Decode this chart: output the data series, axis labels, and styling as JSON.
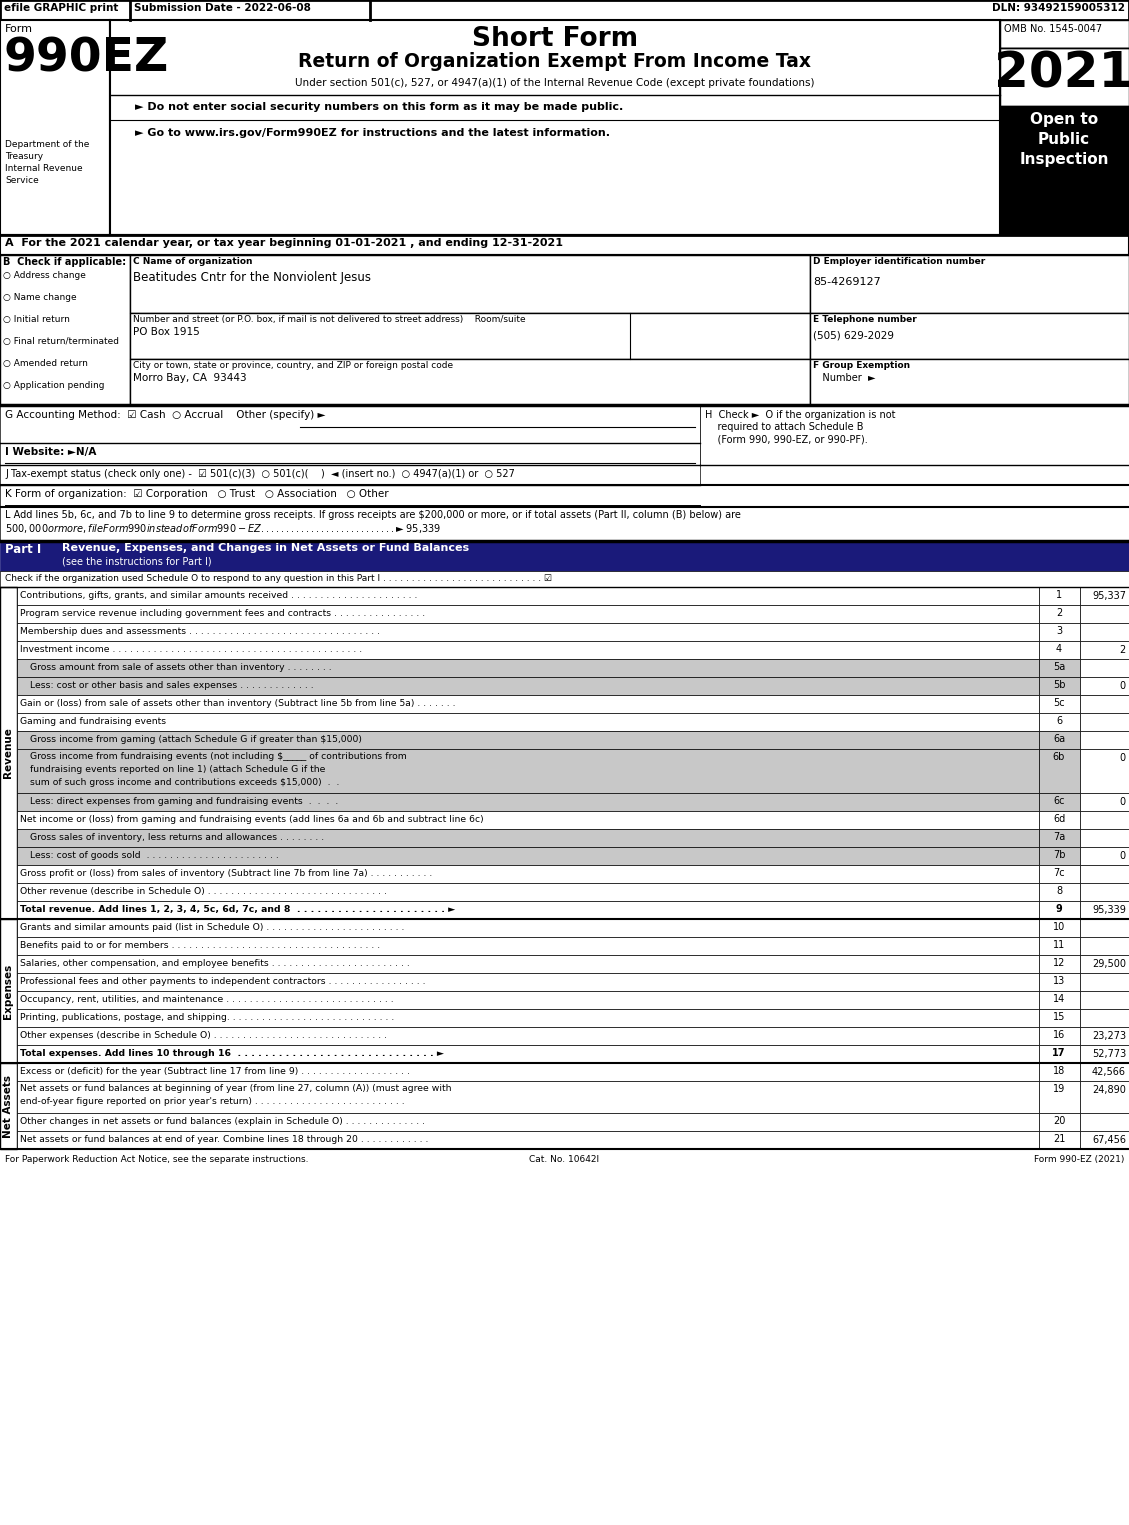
{
  "title_short": "Short Form",
  "title_long": "Return of Organization Exempt From Income Tax",
  "subtitle": "Under section 501(c), 527, or 4947(a)(1) of the Internal Revenue Code (except private foundations)",
  "year": "2021",
  "omb": "OMB No. 1545-0047",
  "efile_text": "efile GRAPHIC print",
  "submission_date": "Submission Date - 2022-06-08",
  "dln": "DLN: 93492159005312",
  "form_number": "990EZ",
  "form_label": "Form",
  "dept1": "Department of the",
  "dept2": "Treasury",
  "dept3": "Internal Revenue",
  "dept4": "Service",
  "bullet1": "► Do not enter social security numbers on this form as it may be made public.",
  "bullet2": "► Go to www.irs.gov/Form990EZ for instructions and the latest information.",
  "open_to": "Open to\nPublic\nInspection",
  "section_A": "A  For the 2021 calendar year, or tax year beginning 01-01-2021 , and ending 12-31-2021",
  "checkboxes_B": [
    "Address change",
    "Name change",
    "Initial return",
    "Final return/terminated",
    "Amended return",
    "Application pending"
  ],
  "org_name": "Beatitudes Cntr for the Nonviolent Jesus",
  "ein": "85-4269127",
  "addr_label": "Number and street (or P.O. box, if mail is not delivered to street address)    Room/suite",
  "addr_value": "PO Box 1915",
  "phone_label": "E Telephone number",
  "phone_value": "(505) 629-2029",
  "city_label": "City or town, state or province, country, and ZIP or foreign postal code",
  "city_value": "Morro Bay, CA  93443",
  "part1_sub": "Check if the organization used Schedule O to respond to any question in this Part I . . . . . . . . . . . . . . . . . . . . . . . . . . . . ☑",
  "revenue_label": "Revenue",
  "expenses_label": "Expenses",
  "net_assets_label": "Net Assets",
  "lines": [
    {
      "num": "1",
      "text": "Contributions, gifts, grants, and similar amounts received . . . . . . . . . . . . . . . . . . . . . .",
      "value": "95,337",
      "shaded": false,
      "rh": 18
    },
    {
      "num": "2",
      "text": "Program service revenue including government fees and contracts . . . . . . . . . . . . . . . .",
      "value": "",
      "shaded": false,
      "rh": 18
    },
    {
      "num": "3",
      "text": "Membership dues and assessments . . . . . . . . . . . . . . . . . . . . . . . . . . . . . . . . .",
      "value": "",
      "shaded": false,
      "rh": 18
    },
    {
      "num": "4",
      "text": "Investment income . . . . . . . . . . . . . . . . . . . . . . . . . . . . . . . . . . . . . . . . . . .",
      "value": "2",
      "shaded": false,
      "rh": 18
    },
    {
      "num": "5a",
      "text": "Gross amount from sale of assets other than inventory . . . . . . . .",
      "value": "",
      "shaded": true,
      "sub": true,
      "rh": 18
    },
    {
      "num": "5b",
      "text": "Less: cost or other basis and sales expenses . . . . . . . . . . . . .",
      "value": "0",
      "shaded": true,
      "sub": true,
      "rh": 18
    },
    {
      "num": "5c",
      "text": "Gain or (loss) from sale of assets other than inventory (Subtract line 5b from line 5a) . . . . . . .",
      "value": "",
      "shaded": false,
      "rh": 18
    },
    {
      "num": "6",
      "text": "Gaming and fundraising events",
      "value": "",
      "shaded": false,
      "rh": 18,
      "header": true
    },
    {
      "num": "6a",
      "text": "Gross income from gaming (attach Schedule G if greater than $15,000)",
      "value": "",
      "shaded": true,
      "sub": true,
      "rh": 18
    },
    {
      "num": "6b",
      "text": "Gross income from fundraising events (not including $_____ of contributions from\nfundraising events reported on line 1) (attach Schedule G if the\nsum of such gross income and contributions exceeds $15,000)  .  .",
      "value": "0",
      "shaded": true,
      "sub": true,
      "rh": 44
    },
    {
      "num": "6c",
      "text": "Less: direct expenses from gaming and fundraising events  .  .  .  .",
      "value": "0",
      "shaded": true,
      "sub": true,
      "rh": 18
    },
    {
      "num": "6d",
      "text": "Net income or (loss) from gaming and fundraising events (add lines 6a and 6b and subtract line 6c)",
      "value": "",
      "shaded": false,
      "rh": 18
    },
    {
      "num": "7a",
      "text": "Gross sales of inventory, less returns and allowances . . . . . . . .",
      "value": "",
      "shaded": true,
      "sub": true,
      "rh": 18
    },
    {
      "num": "7b",
      "text": "Less: cost of goods sold  . . . . . . . . . . . . . . . . . . . . . . .",
      "value": "0",
      "shaded": true,
      "sub": true,
      "rh": 18
    },
    {
      "num": "7c",
      "text": "Gross profit or (loss) from sales of inventory (Subtract line 7b from line 7a) . . . . . . . . . . .",
      "value": "",
      "shaded": false,
      "rh": 18
    },
    {
      "num": "8",
      "text": "Other revenue (describe in Schedule O) . . . . . . . . . . . . . . . . . . . . . . . . . . . . . . .",
      "value": "",
      "shaded": false,
      "rh": 18
    },
    {
      "num": "9",
      "text": "Total revenue. Add lines 1, 2, 3, 4, 5c, 6d, 7c, and 8  . . . . . . . . . . . . . . . . . . . . . . ►",
      "value": "95,339",
      "shaded": false,
      "bold": true,
      "rh": 18
    }
  ],
  "expense_lines": [
    {
      "num": "10",
      "text": "Grants and similar amounts paid (list in Schedule O) . . . . . . . . . . . . . . . . . . . . . . . .",
      "value": "",
      "rh": 18
    },
    {
      "num": "11",
      "text": "Benefits paid to or for members . . . . . . . . . . . . . . . . . . . . . . . . . . . . . . . . . . . .",
      "value": "",
      "rh": 18
    },
    {
      "num": "12",
      "text": "Salaries, other compensation, and employee benefits . . . . . . . . . . . . . . . . . . . . . . . .",
      "value": "29,500",
      "rh": 18
    },
    {
      "num": "13",
      "text": "Professional fees and other payments to independent contractors . . . . . . . . . . . . . . . . .",
      "value": "",
      "rh": 18
    },
    {
      "num": "14",
      "text": "Occupancy, rent, utilities, and maintenance . . . . . . . . . . . . . . . . . . . . . . . . . . . . .",
      "value": "",
      "rh": 18
    },
    {
      "num": "15",
      "text": "Printing, publications, postage, and shipping. . . . . . . . . . . . . . . . . . . . . . . . . . . . .",
      "value": "",
      "rh": 18
    },
    {
      "num": "16",
      "text": "Other expenses (describe in Schedule O) . . . . . . . . . . . . . . . . . . . . . . . . . . . . . .",
      "value": "23,273",
      "rh": 18
    },
    {
      "num": "17",
      "text": "Total expenses. Add lines 10 through 16  . . . . . . . . . . . . . . . . . . . . . . . . . . . . . ►",
      "value": "52,773",
      "bold": true,
      "rh": 18
    }
  ],
  "net_asset_lines": [
    {
      "num": "18",
      "text": "Excess or (deficit) for the year (Subtract line 17 from line 9) . . . . . . . . . . . . . . . . . . .",
      "value": "42,566",
      "rh": 18
    },
    {
      "num": "19",
      "text": "Net assets or fund balances at beginning of year (from line 27, column (A)) (must agree with\nend-of-year figure reported on prior year's return) . . . . . . . . . . . . . . . . . . . . . . . . . .",
      "value": "24,890",
      "rh": 32
    },
    {
      "num": "20",
      "text": "Other changes in net assets or fund balances (explain in Schedule O) . . . . . . . . . . . . . .",
      "value": "",
      "rh": 18
    },
    {
      "num": "21",
      "text": "Net assets or fund balances at end of year. Combine lines 18 through 20 . . . . . . . . . . . .",
      "value": "67,456",
      "rh": 18
    }
  ],
  "footer_left": "For Paperwork Reduction Act Notice, see the separate instructions.",
  "footer_cat": "Cat. No. 10642I",
  "footer_right": "Form 990-EZ (2021)"
}
